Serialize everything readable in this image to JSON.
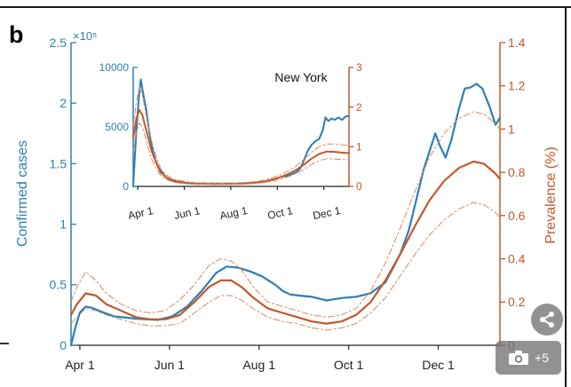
{
  "panel_label": "b",
  "gallery": {
    "count": "+5",
    "icon": "camera-icon",
    "share_icon": "share-icon"
  },
  "colors": {
    "cases": "#2d7fb5",
    "prevalence": "#c4582a",
    "prevalence_band": "#d98a5c",
    "axis_left": "#2d7fb5",
    "axis_right": "#c4582a"
  },
  "chart_data": [
    {
      "type": "line",
      "name": "main",
      "x_ticks": [
        "Apr 1",
        "Jun 1",
        "Aug 1",
        "Oct 1",
        "Dec 1"
      ],
      "x_tick_days": [
        32,
        93,
        154,
        215,
        276
      ],
      "xlim": [
        26,
        318
      ],
      "left_axis": {
        "label": "Confirmed cases",
        "multiplier": "×10⁵",
        "ticks": [
          "0",
          "0.5",
          "1",
          "1.5",
          "2",
          "2.5"
        ],
        "tick_values": [
          0,
          0.5,
          1,
          1.5,
          2,
          2.5
        ],
        "ylim": [
          0,
          2.5
        ]
      },
      "right_axis": {
        "label": "Prevalence (%)",
        "ticks": [
          "0",
          "0.2",
          "0.4",
          "0.6",
          "0.8",
          "1",
          "1.2",
          "1.4"
        ],
        "tick_values": [
          0,
          0.2,
          0.4,
          0.6,
          0.8,
          1,
          1.2,
          1.4
        ],
        "ylim": [
          0,
          1.4
        ]
      },
      "series": [
        {
          "name": "Confirmed cases",
          "axis": "left",
          "x": [
            26,
            29,
            32,
            36,
            40,
            46,
            55,
            70,
            85,
            95,
            105,
            115,
            125,
            132,
            140,
            148,
            156,
            165,
            170,
            175,
            182,
            190,
            200,
            210,
            220,
            230,
            240,
            250,
            256,
            260,
            263,
            266,
            270,
            274,
            277,
            281,
            285,
            290,
            294,
            298,
            302,
            306,
            311,
            315,
            318
          ],
          "y": [
            0,
            0.15,
            0.27,
            0.32,
            0.31,
            0.28,
            0.24,
            0.22,
            0.21,
            0.24,
            0.32,
            0.45,
            0.6,
            0.65,
            0.64,
            0.61,
            0.57,
            0.5,
            0.45,
            0.42,
            0.41,
            0.4,
            0.37,
            0.39,
            0.4,
            0.43,
            0.52,
            0.75,
            0.95,
            1.15,
            1.3,
            1.45,
            1.6,
            1.75,
            1.65,
            1.55,
            1.7,
            1.95,
            2.12,
            2.13,
            2.16,
            2.12,
            1.97,
            1.82,
            1.88
          ]
        },
        {
          "name": "Prevalence",
          "axis": "right",
          "x": [
            26,
            30,
            36,
            43,
            50,
            60,
            70,
            80,
            90,
            100,
            110,
            120,
            128,
            135,
            142,
            150,
            160,
            170,
            180,
            190,
            200,
            210,
            220,
            230,
            240,
            250,
            260,
            270,
            280,
            290,
            300,
            307,
            314,
            318
          ],
          "y": [
            0.14,
            0.19,
            0.24,
            0.23,
            0.19,
            0.16,
            0.13,
            0.12,
            0.12,
            0.14,
            0.2,
            0.27,
            0.3,
            0.3,
            0.27,
            0.22,
            0.17,
            0.15,
            0.13,
            0.11,
            0.1,
            0.11,
            0.14,
            0.2,
            0.3,
            0.42,
            0.55,
            0.67,
            0.76,
            0.82,
            0.85,
            0.84,
            0.8,
            0.77
          ]
        },
        {
          "name": "Prevalence upper",
          "axis": "right",
          "x": [
            26,
            30,
            36,
            43,
            50,
            60,
            70,
            80,
            90,
            100,
            110,
            120,
            128,
            135,
            142,
            150,
            160,
            170,
            180,
            190,
            200,
            210,
            220,
            230,
            240,
            250,
            260,
            270,
            280,
            290,
            300,
            307,
            314,
            318
          ],
          "y": [
            0.2,
            0.27,
            0.34,
            0.3,
            0.24,
            0.19,
            0.16,
            0.15,
            0.16,
            0.21,
            0.28,
            0.37,
            0.4,
            0.39,
            0.35,
            0.27,
            0.2,
            0.18,
            0.16,
            0.14,
            0.13,
            0.14,
            0.17,
            0.25,
            0.38,
            0.54,
            0.71,
            0.87,
            0.98,
            1.05,
            1.08,
            1.07,
            1.03,
            1.0
          ]
        },
        {
          "name": "Prevalence lower",
          "axis": "right",
          "x": [
            26,
            30,
            36,
            43,
            50,
            60,
            70,
            80,
            90,
            100,
            110,
            120,
            128,
            135,
            142,
            150,
            160,
            170,
            180,
            190,
            200,
            210,
            220,
            230,
            240,
            250,
            260,
            270,
            280,
            290,
            300,
            307,
            314,
            318
          ],
          "y": [
            0.1,
            0.13,
            0.17,
            0.16,
            0.14,
            0.12,
            0.1,
            0.09,
            0.09,
            0.1,
            0.15,
            0.2,
            0.23,
            0.23,
            0.21,
            0.17,
            0.13,
            0.11,
            0.1,
            0.08,
            0.07,
            0.08,
            0.1,
            0.15,
            0.22,
            0.32,
            0.42,
            0.51,
            0.58,
            0.63,
            0.66,
            0.65,
            0.62,
            0.59
          ]
        }
      ]
    },
    {
      "type": "line",
      "name": "inset",
      "title": "New York",
      "x_ticks": [
        "Apr 1",
        "Jun 1",
        "Aug 1",
        "Oct 1",
        "Dec 1"
      ],
      "x_tick_days": [
        32,
        93,
        154,
        215,
        276
      ],
      "xlim": [
        26,
        309
      ],
      "left_axis": {
        "ticks": [
          "0",
          "5000",
          "10000"
        ],
        "tick_values": [
          0,
          5000,
          10000
        ],
        "ylim": [
          0,
          10000
        ]
      },
      "right_axis": {
        "ticks": [
          "0",
          "1",
          "2",
          "3"
        ],
        "tick_values": [
          0,
          1,
          2,
          3
        ],
        "ylim": [
          0,
          3
        ]
      },
      "series": [
        {
          "name": "Confirmed cases",
          "axis": "left",
          "x": [
            26,
            30,
            34,
            36,
            38,
            40,
            43,
            46,
            50,
            55,
            60,
            66,
            70,
            80,
            90,
            100,
            120,
            140,
            160,
            180,
            200,
            210,
            220,
            230,
            240,
            245,
            250,
            255,
            260,
            265,
            270,
            275,
            278,
            282,
            286,
            290,
            295,
            300,
            305,
            309
          ],
          "y": [
            0,
            4500,
            8000,
            9000,
            8200,
            7500,
            6500,
            5000,
            3500,
            2200,
            1500,
            1000,
            700,
            400,
            300,
            250,
            250,
            250,
            250,
            300,
            400,
            600,
            800,
            900,
            1200,
            1500,
            2200,
            3000,
            3500,
            3800,
            4000,
            4800,
            5800,
            5500,
            5700,
            5600,
            5800,
            5600,
            5900,
            5900
          ]
        },
        {
          "name": "Prevalence",
          "axis": "right",
          "x": [
            26,
            30,
            34,
            38,
            42,
            46,
            50,
            56,
            62,
            70,
            80,
            95,
            110,
            130,
            150,
            170,
            190,
            200,
            210,
            220,
            230,
            240,
            250,
            260,
            270,
            280,
            290,
            300,
            309
          ],
          "y": [
            1.2,
            1.7,
            1.93,
            1.8,
            1.5,
            1.2,
            0.9,
            0.6,
            0.35,
            0.22,
            0.14,
            0.09,
            0.07,
            0.06,
            0.06,
            0.07,
            0.1,
            0.13,
            0.18,
            0.24,
            0.32,
            0.42,
            0.55,
            0.7,
            0.82,
            0.88,
            0.87,
            0.85,
            0.84
          ]
        },
        {
          "name": "Prevalence upper",
          "axis": "right",
          "x": [
            26,
            30,
            34,
            38,
            42,
            46,
            50,
            56,
            62,
            70,
            80,
            95,
            110,
            130,
            150,
            170,
            190,
            200,
            210,
            220,
            230,
            240,
            250,
            260,
            270,
            280,
            290,
            300,
            309
          ],
          "y": [
            1.5,
            2.1,
            2.5,
            2.3,
            1.9,
            1.5,
            1.15,
            0.75,
            0.45,
            0.28,
            0.18,
            0.12,
            0.09,
            0.08,
            0.08,
            0.09,
            0.13,
            0.17,
            0.23,
            0.3,
            0.4,
            0.52,
            0.68,
            0.86,
            1.0,
            1.07,
            1.07,
            1.05,
            1.04
          ]
        },
        {
          "name": "Prevalence lower",
          "axis": "right",
          "x": [
            26,
            30,
            34,
            38,
            42,
            46,
            50,
            56,
            62,
            70,
            80,
            95,
            110,
            130,
            150,
            170,
            190,
            200,
            210,
            220,
            230,
            240,
            250,
            260,
            270,
            280,
            290,
            300,
            309
          ],
          "y": [
            0.9,
            1.35,
            1.6,
            1.5,
            1.25,
            0.95,
            0.7,
            0.45,
            0.27,
            0.17,
            0.1,
            0.07,
            0.05,
            0.05,
            0.05,
            0.05,
            0.08,
            0.1,
            0.14,
            0.18,
            0.25,
            0.33,
            0.43,
            0.55,
            0.65,
            0.7,
            0.69,
            0.68,
            0.67
          ]
        }
      ]
    }
  ]
}
